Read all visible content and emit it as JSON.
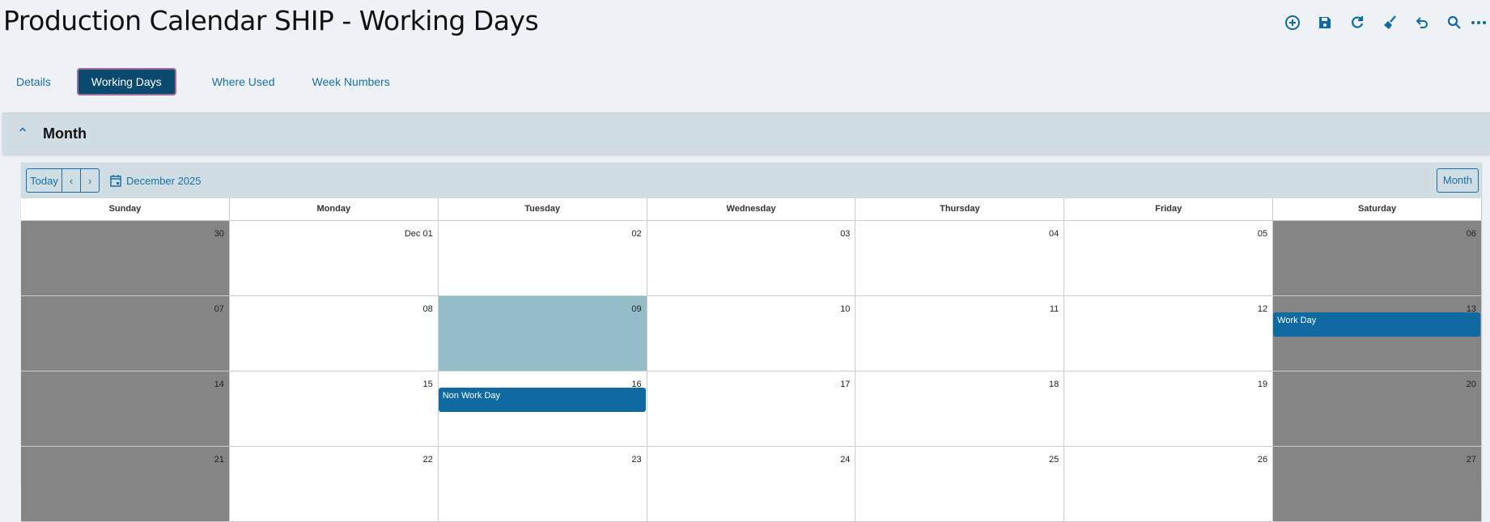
{
  "title": "Production Calendar SHIP - Working Days",
  "actions": [
    "add-icon",
    "save-icon",
    "refresh-icon",
    "clear-icon",
    "undo-icon",
    "search-icon",
    "more-icon"
  ],
  "tabs": [
    {
      "label": "Details"
    },
    {
      "label": "Working Days",
      "active": true
    },
    {
      "label": "Where Used"
    },
    {
      "label": "Week Numbers"
    }
  ],
  "section": {
    "title": "Month"
  },
  "calendar": {
    "today_label": "Today",
    "current": "December 2025",
    "view_label": "Month",
    "weekdays": [
      "Sunday",
      "Monday",
      "Tuesday",
      "Wednesday",
      "Thursday",
      "Friday",
      "Saturday"
    ],
    "weeks": [
      [
        "30",
        "Dec 01",
        "02",
        "03",
        "04",
        "05",
        "06"
      ],
      [
        "07",
        "08",
        "09",
        "10",
        "11",
        "12",
        "13"
      ],
      [
        "14",
        "15",
        "16",
        "17",
        "18",
        "19",
        "20"
      ],
      [
        "21",
        "22",
        "23",
        "24",
        "25",
        "26",
        "27"
      ]
    ],
    "selected": "09",
    "events": {
      "13": "Work Day",
      "16": "Non Work Day"
    },
    "colors": {
      "weekend": "#858585",
      "selected": "#94bcc9",
      "event": "#0e6aa0",
      "tab_active": "#0a4a6e"
    }
  }
}
